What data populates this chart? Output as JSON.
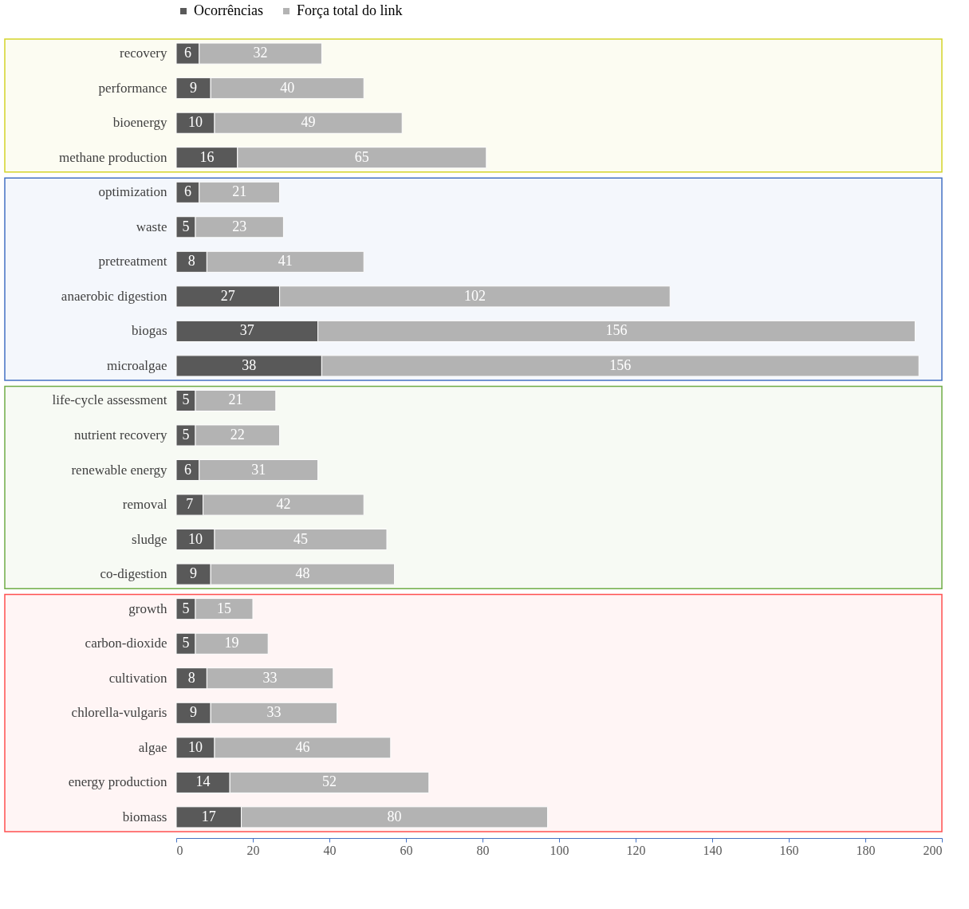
{
  "chart_data": {
    "type": "bar",
    "orientation": "horizontal",
    "stacked": true,
    "data_labels": true,
    "legend": "top",
    "grid": false,
    "categories": [
      "recovery",
      "performance",
      "bioenergy",
      "methane production",
      "optimization",
      "waste",
      "pretreatment",
      "anaerobic digestion",
      "biogas",
      "microalgae",
      "life-cycle assessment",
      "nutrient recovery",
      "renewable energy",
      "removal",
      "sludge",
      "co-digestion",
      "growth",
      "carbon-dioxide",
      "cultivation",
      "chlorella-vulgaris",
      "algae",
      "energy production",
      "biomass"
    ],
    "series": [
      {
        "name": "Ocorrências",
        "color": "#595959",
        "values": [
          6,
          9,
          10,
          16,
          6,
          5,
          8,
          27,
          37,
          38,
          5,
          5,
          6,
          7,
          10,
          9,
          5,
          5,
          8,
          9,
          10,
          14,
          17
        ]
      },
      {
        "name": "Força total do link",
        "color": "#b3b3b3",
        "values": [
          32,
          40,
          49,
          65,
          21,
          23,
          41,
          102,
          156,
          156,
          21,
          22,
          31,
          42,
          45,
          48,
          15,
          19,
          33,
          33,
          46,
          52,
          80
        ]
      }
    ],
    "xlim": [
      0,
      200
    ],
    "xticks": [
      0,
      20,
      40,
      60,
      80,
      100,
      120,
      140,
      160,
      180,
      200
    ],
    "bands": [
      {
        "axis": "y",
        "from": "recovery",
        "to": "methane production",
        "color": "#d4d42a"
      },
      {
        "axis": "y",
        "from": "optimization",
        "to": "microalgae",
        "color": "#4472c4"
      },
      {
        "axis": "y",
        "from": "life-cycle assessment",
        "to": "co-digestion",
        "color": "#70ad47"
      },
      {
        "axis": "y",
        "from": "growth",
        "to": "biomass",
        "color": "#ff5050"
      }
    ]
  }
}
